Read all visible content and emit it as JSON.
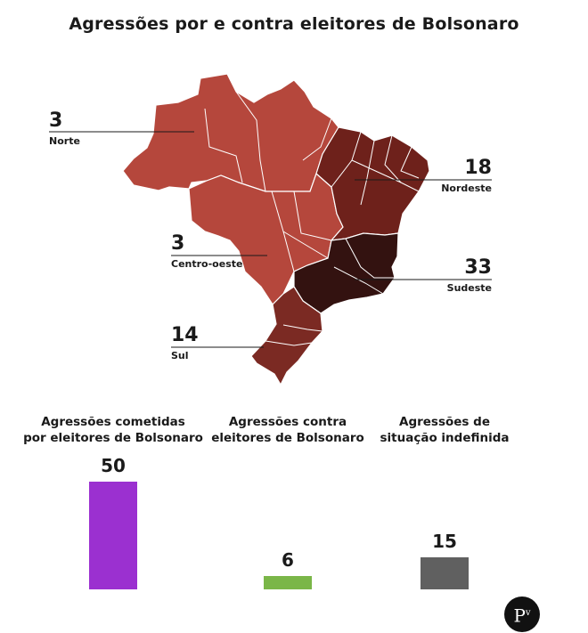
{
  "title": "Agressões por e contra eleitores de Bolsonaro",
  "colors": {
    "norte": "#b5473c",
    "centro_oeste": "#b5473c",
    "nordeste": "#6e211b",
    "sudeste": "#331210",
    "sul": "#7b2a23",
    "border": "#ffffff"
  },
  "regions": [
    {
      "key": "norte",
      "label": "Norte",
      "value": "3"
    },
    {
      "key": "centro_oeste",
      "label": "Centro-oeste",
      "value": "3"
    },
    {
      "key": "nordeste",
      "label": "Nordeste",
      "value": "18"
    },
    {
      "key": "sudeste",
      "label": "Sudeste",
      "value": "33"
    },
    {
      "key": "sul",
      "label": "Sul",
      "value": "14"
    }
  ],
  "chart_data": {
    "type": "bar",
    "categories": [
      "Agressões cometidas por eleitores de Bolsonaro",
      "Agressões contra eleitores de Bolsonaro",
      "Agressões de situação indefinida"
    ],
    "category_lines": [
      [
        "Agressões cometidas",
        "por eleitores de Bolsonaro"
      ],
      [
        "Agressões contra",
        "eleitores de Bolsonaro"
      ],
      [
        "Agressões de",
        "situação indefinida"
      ]
    ],
    "values": [
      50,
      6,
      15
    ],
    "colors": [
      "#9b30d0",
      "#7ab648",
      "#606060"
    ]
  },
  "logo": {
    "text": "P",
    "sup": "v"
  }
}
